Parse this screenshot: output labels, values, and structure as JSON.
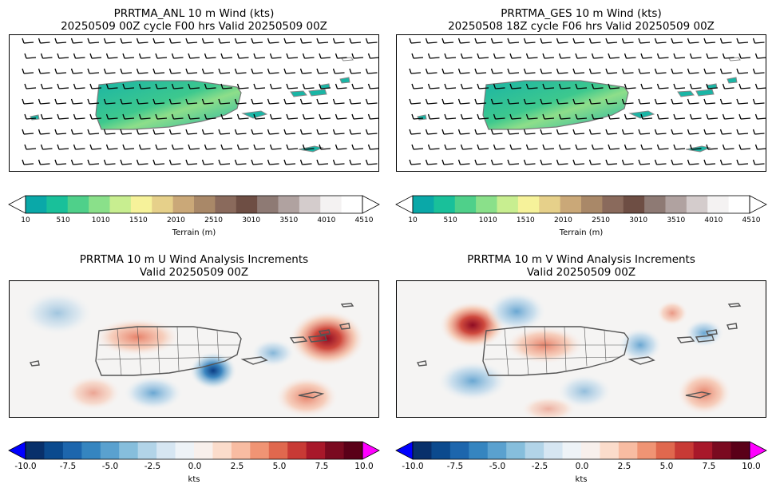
{
  "panels": [
    {
      "title_line1": "PRRTMA_ANL 10 m Wind (kts)",
      "title_line2": "20250509 00Z cycle F00 hrs Valid 20250509 00Z"
    },
    {
      "title_line1": "PRRTMA_GES 10 m Wind (kts)",
      "title_line2": "20250508 18Z cycle F06 hrs Valid 20250509 00Z"
    },
    {
      "title_line1": "PRRTMA 10 m U Wind Analysis Increments",
      "title_line2": "Valid 20250509 00Z"
    },
    {
      "title_line1": "PRRTMA 10 m V Wind Analysis Increments",
      "title_line2": "Valid 20250509 00Z"
    }
  ],
  "colorbars": {
    "terrain": {
      "label": "Terrain (m)",
      "ticks": [
        "10",
        "510",
        "1010",
        "1510",
        "2010",
        "2510",
        "3010",
        "3510",
        "4010",
        "4510"
      ],
      "colors": [
        "#0aa8a8",
        "#19c09a",
        "#4fd08a",
        "#8ae08a",
        "#c8ee90",
        "#f6f29a",
        "#e6d08a",
        "#caa878",
        "#a98868",
        "#8a6a5c",
        "#6e4e44",
        "#8e7a74",
        "#b0a2a0",
        "#d4cccc",
        "#f4f2f2",
        "#ffffff"
      ]
    },
    "increments": {
      "label": "kts",
      "ticks": [
        "-10.0",
        "-7.5",
        "-5.0",
        "-2.5",
        "0.0",
        "2.5",
        "5.0",
        "7.5",
        "10.0"
      ],
      "under_color": "#0000ff",
      "over_color": "#ff00ff",
      "colors": [
        "#08306b",
        "#0b4a8e",
        "#1d66ad",
        "#3585c0",
        "#5aa1cf",
        "#86bedc",
        "#b2d4e8",
        "#d6e6f2",
        "#eef3f7",
        "#f8f0ec",
        "#fbdccb",
        "#f8bca2",
        "#f09474",
        "#e0684e",
        "#c83a35",
        "#a8182a",
        "#7a0a20",
        "#5a0018"
      ]
    }
  },
  "chart_data": [
    {
      "type": "heatmap",
      "title": "PRRTMA_ANL 10 m Wind (kts)",
      "subtitle": "20250509 00Z cycle F00 hrs Valid 20250509 00Z",
      "variable": "Terrain (m) with 10 m wind barbs",
      "colorbar_range": [
        10,
        4510
      ],
      "colorbar_ticks": [
        10,
        510,
        1010,
        1510,
        2010,
        2510,
        3010,
        3510,
        4010,
        4510
      ],
      "barb_grid": {
        "rows": 9,
        "cols": 22,
        "dominant_direction": "easterly"
      }
    },
    {
      "type": "heatmap",
      "title": "PRRTMA_GES 10 m Wind (kts)",
      "subtitle": "20250508 18Z cycle F06 hrs Valid 20250509 00Z",
      "variable": "Terrain (m) with 10 m wind barbs",
      "colorbar_range": [
        10,
        4510
      ],
      "colorbar_ticks": [
        10,
        510,
        1010,
        1510,
        2010,
        2510,
        3010,
        3510,
        4010,
        4510
      ],
      "barb_grid": {
        "rows": 9,
        "cols": 22,
        "dominant_direction": "easterly"
      }
    },
    {
      "type": "heatmap",
      "title": "PRRTMA 10 m U Wind Analysis Increments",
      "subtitle": "Valid 20250509 00Z",
      "variable": "U wind increment (kts)",
      "colorbar_range": [
        -10,
        10
      ],
      "colorbar_ticks": [
        -10.0,
        -7.5,
        -5.0,
        -2.5,
        0.0,
        2.5,
        5.0,
        7.5,
        10.0
      ],
      "features": [
        {
          "sign": "positive",
          "peak_kts": 8.5,
          "location": "east near Vieques/Virgin Islands"
        },
        {
          "sign": "negative",
          "peak_kts": -7.5,
          "location": "southeast Puerto Rico coast"
        },
        {
          "sign": "positive",
          "peak_kts": 4.0,
          "location": "northern Puerto Rico interior"
        },
        {
          "sign": "positive",
          "peak_kts": 3.5,
          "location": "southeast waters near St. Croix"
        },
        {
          "sign": "negative",
          "peak_kts": -3.0,
          "location": "south of Puerto Rico"
        }
      ]
    },
    {
      "type": "heatmap",
      "title": "PRRTMA 10 m V Wind Analysis Increments",
      "subtitle": "Valid 20250509 00Z",
      "variable": "V wind increment (kts)",
      "colorbar_range": [
        -10,
        10
      ],
      "colorbar_ticks": [
        -10.0,
        -7.5,
        -5.0,
        -2.5,
        0.0,
        2.5,
        5.0,
        7.5,
        10.0
      ],
      "features": [
        {
          "sign": "positive",
          "peak_kts": 6.5,
          "location": "northwest of Puerto Rico"
        },
        {
          "sign": "negative",
          "peak_kts": -4.0,
          "location": "north of Puerto Rico"
        },
        {
          "sign": "positive",
          "peak_kts": 4.0,
          "location": "northern Puerto Rico interior"
        },
        {
          "sign": "negative",
          "peak_kts": -3.5,
          "location": "southwest waters"
        },
        {
          "sign": "positive",
          "peak_kts": 4.0,
          "location": "southeast waters near St. Croix"
        }
      ]
    }
  ]
}
